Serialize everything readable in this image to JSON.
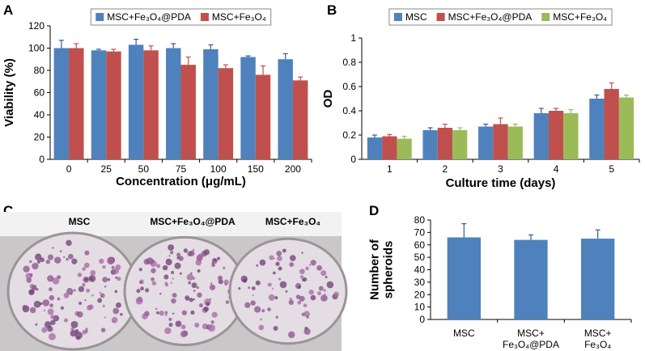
{
  "chart_data": [
    {
      "type": "bar",
      "panel_label": "A",
      "ylabel": "Viability (%)",
      "xlabel": "Concentration (μg/mL)",
      "categories": [
        "0",
        "25",
        "50",
        "75",
        "100",
        "150",
        "200"
      ],
      "series": [
        {
          "name": "MSC+Fe₃O₄@PDA",
          "color": "#4f81bd",
          "values": [
            100,
            98,
            103,
            100,
            99,
            92,
            90
          ],
          "errors": [
            7,
            1,
            5,
            4,
            4,
            1,
            5
          ]
        },
        {
          "name": "MSC+Fe₃O₄",
          "color": "#c0504d",
          "values": [
            100,
            97,
            98,
            85,
            82,
            76,
            71
          ],
          "errors": [
            4,
            2,
            4,
            7,
            3,
            8,
            3
          ]
        }
      ],
      "ylim": [
        0,
        120
      ],
      "yticks": [
        0,
        20,
        40,
        60,
        80,
        100,
        120
      ],
      "legend": "top"
    },
    {
      "type": "bar",
      "panel_label": "B",
      "ylabel": "OD",
      "xlabel": "Culture time (days)",
      "categories": [
        "1",
        "2",
        "3",
        "4",
        "5"
      ],
      "series": [
        {
          "name": "MSC",
          "color": "#4f81bd",
          "values": [
            0.18,
            0.24,
            0.27,
            0.38,
            0.5
          ],
          "errors": [
            0.02,
            0.02,
            0.02,
            0.04,
            0.03
          ]
        },
        {
          "name": "MSC+Fe₃O₄@PDA",
          "color": "#c0504d",
          "values": [
            0.19,
            0.26,
            0.29,
            0.4,
            0.58
          ],
          "errors": [
            0.015,
            0.03,
            0.05,
            0.02,
            0.05
          ]
        },
        {
          "name": "MSC+Fe₃O₄",
          "color": "#9bbb59",
          "values": [
            0.17,
            0.24,
            0.27,
            0.38,
            0.51
          ],
          "errors": [
            0.02,
            0.02,
            0.02,
            0.03,
            0.02
          ]
        }
      ],
      "ylim": [
        0,
        1
      ],
      "yticks": [
        0,
        0.2,
        0.4,
        0.6,
        0.8,
        1
      ],
      "legend": "top"
    },
    {
      "type": "bar",
      "panel_label": "D",
      "ylabel": "Number of\nspheroids",
      "categories": [
        "MSC",
        "MSC+\nFe₃O₄@PDA",
        "MSC+\nFe₃O₄"
      ],
      "series": [
        {
          "color": "#4f81bd",
          "values": [
            66,
            64,
            65
          ],
          "errors": [
            11,
            4,
            7
          ]
        }
      ],
      "ylim": [
        0,
        80
      ],
      "yticks": [
        0,
        10,
        20,
        30,
        40,
        50,
        60,
        70,
        80
      ]
    }
  ],
  "photo": {
    "panel_label": "C",
    "labels": [
      "MSC",
      "MSC+Fe₃O₄@PDA",
      "MSC+Fe₃O₄"
    ]
  }
}
